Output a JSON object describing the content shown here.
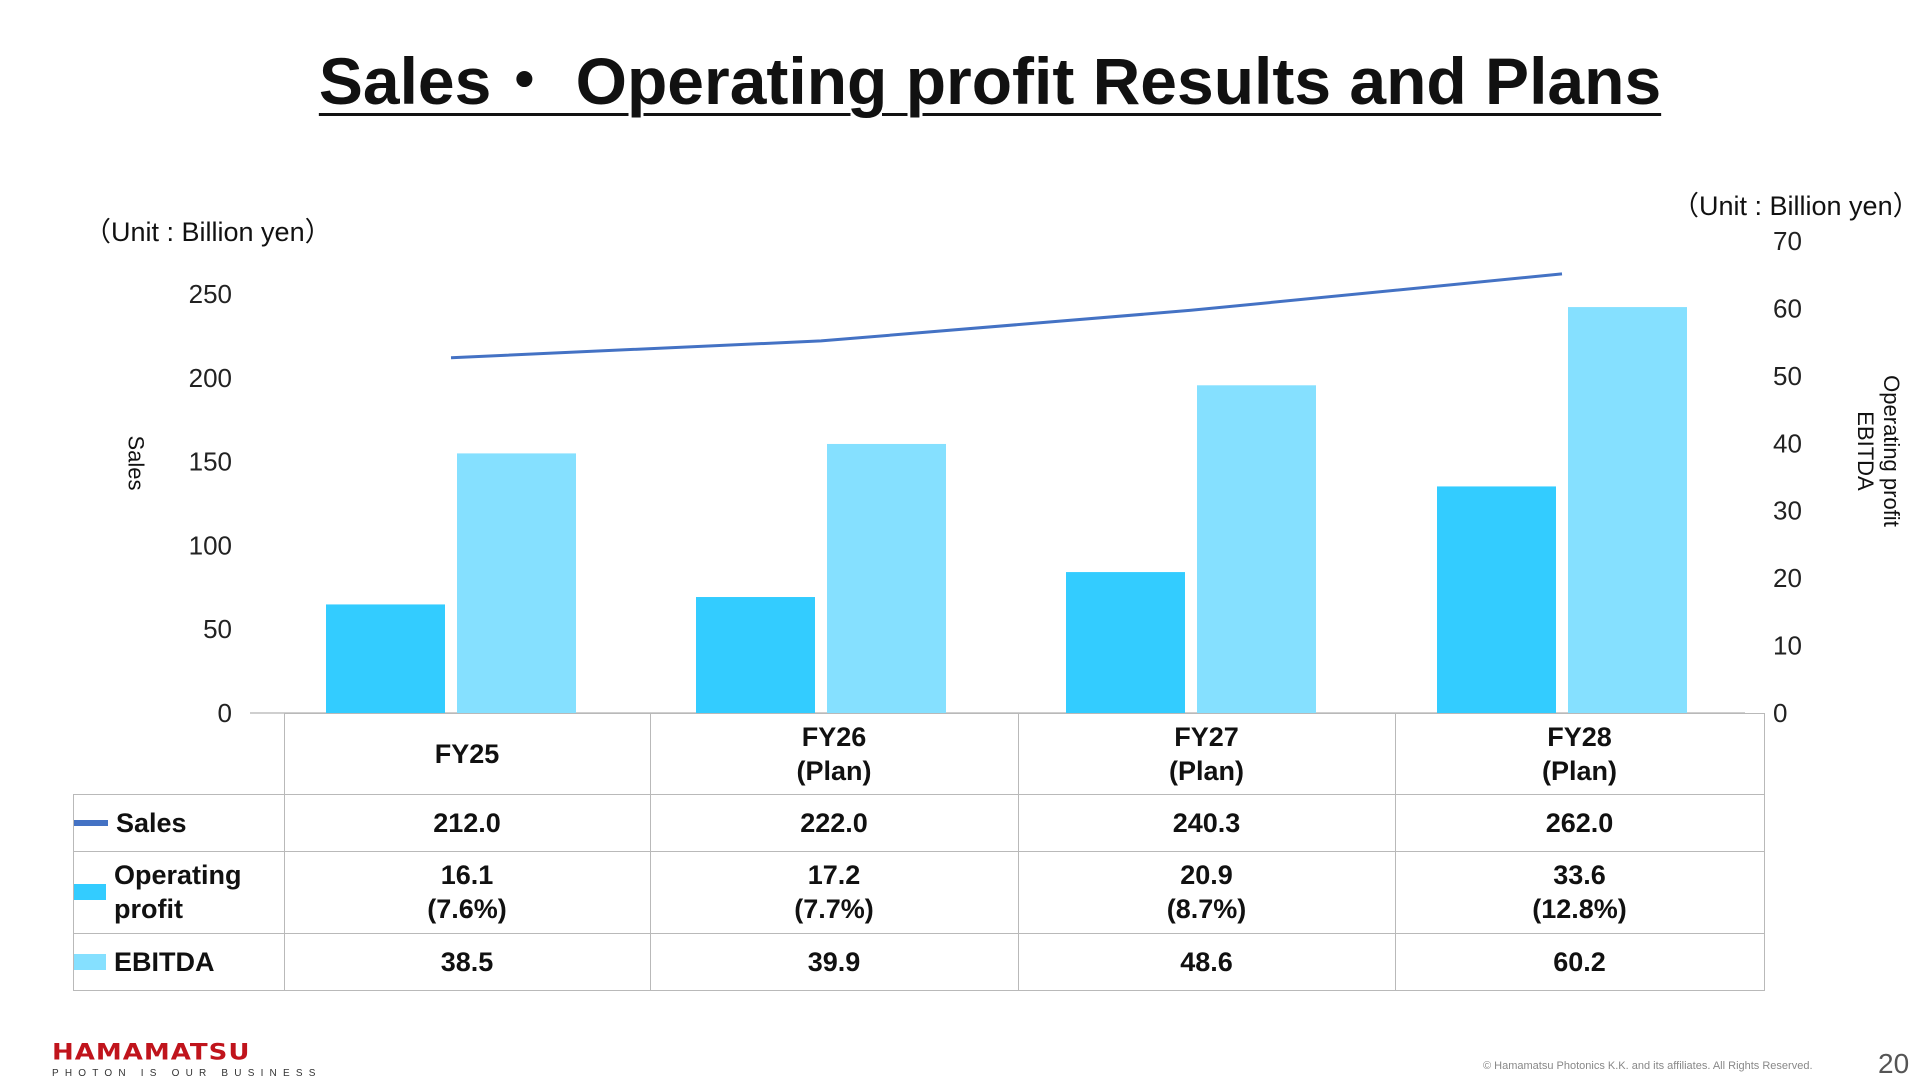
{
  "title": "Sales・ Operating profit  Results and Plans",
  "units": {
    "left": "（Unit : Billion yen）",
    "right": "（Unit : Billion yen）"
  },
  "axis_titles": {
    "left": "Sales",
    "right_line1": "Operating profit",
    "right_line2": "EBITDA"
  },
  "colors": {
    "sales": "#4472c4",
    "operating_profit": "#33ccff",
    "ebitda": "#85e0ff",
    "brand": "#c0141c"
  },
  "table": {
    "columns": [
      {
        "line1": "FY25",
        "line2": ""
      },
      {
        "line1": "FY26",
        "line2": "(Plan)"
      },
      {
        "line1": "FY27",
        "line2": "(Plan)"
      },
      {
        "line1": "FY28",
        "line2": "(Plan)"
      }
    ],
    "rows": [
      {
        "label": "Sales",
        "key": "line",
        "cells": [
          {
            "v": "212.0",
            "p": ""
          },
          {
            "v": "222.0",
            "p": ""
          },
          {
            "v": "240.3",
            "p": ""
          },
          {
            "v": "262.0",
            "p": ""
          }
        ]
      },
      {
        "label_line1": "Operating",
        "label_line2": "profit",
        "key": "op",
        "cells": [
          {
            "v": "16.1",
            "p": "(7.6%)"
          },
          {
            "v": "17.2",
            "p": "(7.7%)"
          },
          {
            "v": "20.9",
            "p": "(8.7%)"
          },
          {
            "v": "33.6",
            "p": "(12.8%)"
          }
        ]
      },
      {
        "label": "EBITDA",
        "key": "eb",
        "cells": [
          {
            "v": "38.5",
            "p": ""
          },
          {
            "v": "39.9",
            "p": ""
          },
          {
            "v": "48.6",
            "p": ""
          },
          {
            "v": "60.2",
            "p": ""
          }
        ]
      }
    ]
  },
  "chart_data": {
    "type": "bar",
    "categories": [
      "FY25",
      "FY26 (Plan)",
      "FY27 (Plan)",
      "FY28 (Plan)"
    ],
    "series": [
      {
        "name": "Sales",
        "type": "line",
        "axis": "left",
        "values": [
          212.0,
          222.0,
          240.3,
          262.0
        ]
      },
      {
        "name": "Operating profit",
        "type": "bar",
        "axis": "right",
        "values": [
          16.1,
          17.2,
          20.9,
          33.6
        ]
      },
      {
        "name": "EBITDA",
        "type": "bar",
        "axis": "right",
        "values": [
          38.5,
          39.9,
          48.6,
          60.2
        ]
      }
    ],
    "y_left": {
      "label": "Sales",
      "range": [
        0,
        250
      ],
      "ticks": [
        0,
        50,
        100,
        150,
        200,
        250
      ]
    },
    "y_right": {
      "label": "Operating profit EBITDA",
      "range": [
        0,
        70
      ],
      "ticks": [
        0,
        10,
        20,
        30,
        40,
        50,
        60,
        70
      ]
    },
    "grid": false,
    "legend": "table-bottom"
  },
  "footer": {
    "logo": "HAMAMATSU",
    "tagline": "PHOTON IS OUR BUSINESS",
    "copyright": "© Hamamatsu Photonics K.K. and its affiliates. All Rights Reserved.",
    "page_number": "20"
  }
}
